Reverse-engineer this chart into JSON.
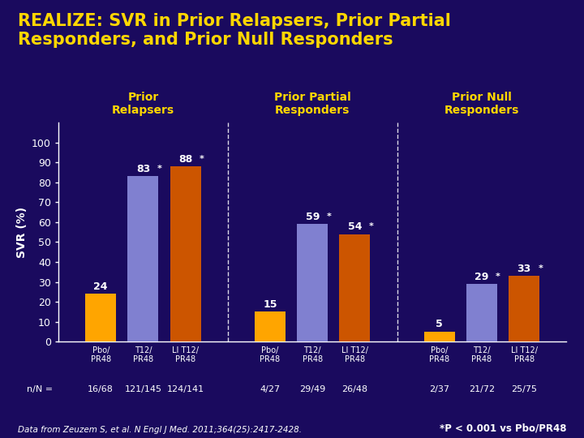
{
  "title_line1": "REALIZE: SVR in Prior Relapsers, Prior Partial",
  "title_line2": "Responders, and Prior Null Responders",
  "title_fontsize": 15,
  "title_color": "#FFD700",
  "background_color": "#1a0a5e",
  "plot_bg_color": "#1a0a5e",
  "ylabel": "SVR (%)",
  "ylabel_color": "white",
  "yticks": [
    0,
    10,
    20,
    30,
    40,
    50,
    60,
    70,
    80,
    90,
    100
  ],
  "ylim": [
    0,
    100
  ],
  "groups": [
    {
      "label": "Prior\nRelapsers",
      "bars": [
        {
          "x_label": "Pbo/\nPR48",
          "value": 24,
          "color": "#FFA500",
          "starred": false
        },
        {
          "x_label": "T12/\nPR48",
          "value": 83,
          "color": "#8080d0",
          "starred": true
        },
        {
          "x_label": "LI T12/\nPR48",
          "value": 88,
          "color": "#cc5500",
          "starred": true
        }
      ],
      "n_values": [
        "16/68",
        "121/145",
        "124/141"
      ]
    },
    {
      "label": "Prior Partial\nResponders",
      "bars": [
        {
          "x_label": "Pbo/\nPR48",
          "value": 15,
          "color": "#FFA500",
          "starred": false
        },
        {
          "x_label": "T12/\nPR48",
          "value": 59,
          "color": "#8080d0",
          "starred": true
        },
        {
          "x_label": "LI T12/\nPR48",
          "value": 54,
          "color": "#cc5500",
          "starred": true
        }
      ],
      "n_values": [
        "4/27",
        "29/49",
        "26/48"
      ]
    },
    {
      "label": "Prior Null\nResponders",
      "bars": [
        {
          "x_label": "Pbo/\nPR48",
          "value": 5,
          "color": "#FFA500",
          "starred": false
        },
        {
          "x_label": "T12/\nPR48",
          "value": 29,
          "color": "#8080d0",
          "starred": true
        },
        {
          "x_label": "LI T12/\nPR48",
          "value": 33,
          "color": "#cc5500",
          "starred": true
        }
      ],
      "n_values": [
        "2/37",
        "21/72",
        "25/75"
      ]
    }
  ],
  "footnote": "Data from Zeuzem S, et al. N Engl J Med. 2011;364(25):2417-2428.",
  "footnote_right": "*P < 0.001 vs Pbo/PR48",
  "axis_color": "white",
  "tick_color": "white",
  "bar_value_color": "white",
  "bar_value_fontsize": 9,
  "group_label_color": "#FFD700",
  "group_label_fontsize": 10,
  "n_label_color": "white",
  "n_label_fontsize": 8
}
